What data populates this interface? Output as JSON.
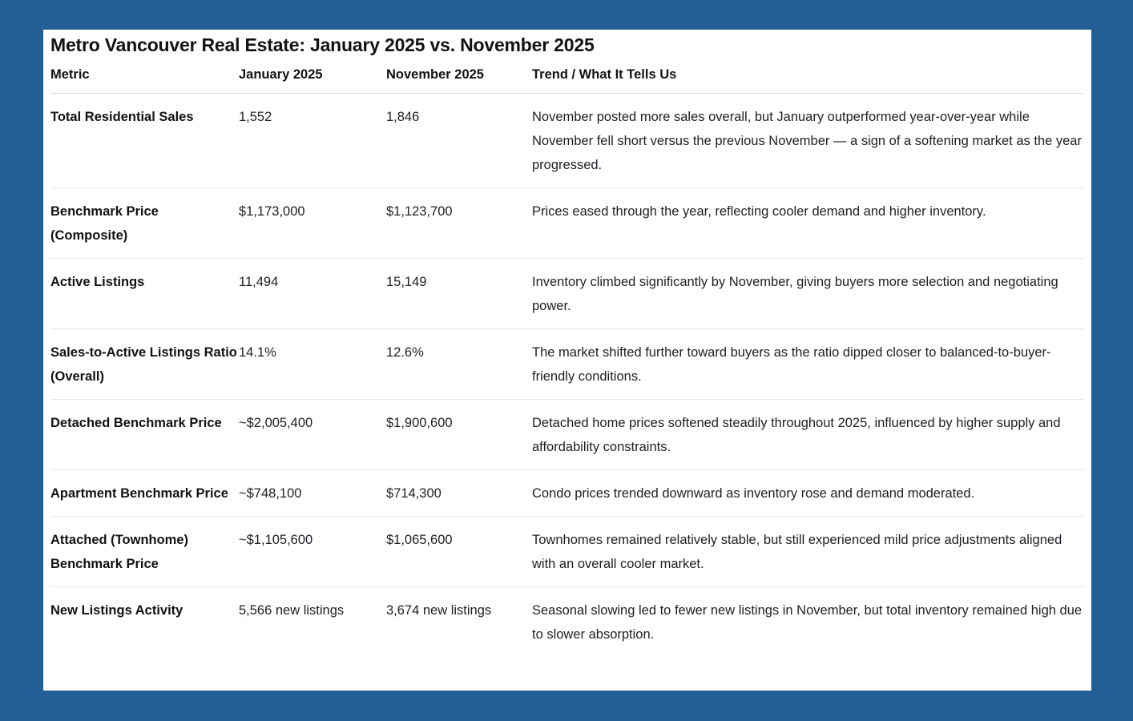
{
  "page": {
    "background_color": "#215e95",
    "card_background": "#ffffff",
    "divider_color": "#e7e7e9",
    "text_color": "#1d1f23"
  },
  "title": "Metro Vancouver Real Estate: January 2025 vs. November 2025",
  "table": {
    "columns": [
      "Metric",
      "January 2025",
      "November 2025",
      "Trend / What It Tells Us"
    ],
    "rows": [
      {
        "metric": "Total Residential Sales",
        "january": "1,552",
        "november": "1,846",
        "trend": "November posted more sales overall, but January outperformed year-over-year while November fell short versus the previous November — a sign of a softening market as the year progressed."
      },
      {
        "metric": "Benchmark Price (Composite)",
        "january": "$1,173,000",
        "november": "$1,123,700",
        "trend": "Prices eased through the year, reflecting cooler demand and higher inventory."
      },
      {
        "metric": "Active Listings",
        "january": "11,494",
        "november": "15,149",
        "trend": "Inventory climbed significantly by November, giving buyers more selection and negotiating power."
      },
      {
        "metric": "Sales-to-Active Listings Ratio (Overall)",
        "january": "14.1%",
        "november": "12.6%",
        "trend": "The market shifted further toward buyers as the ratio dipped closer to balanced-to-buyer-friendly conditions."
      },
      {
        "metric": "Detached Benchmark Price",
        "january": "~$2,005,400",
        "november": "$1,900,600",
        "trend": "Detached home prices softened steadily throughout 2025, influenced by higher supply and affordability constraints."
      },
      {
        "metric": "Apartment Benchmark Price",
        "january": "~$748,100",
        "november": "$714,300",
        "trend": "Condo prices trended downward as inventory rose and demand moderated."
      },
      {
        "metric": "Attached (Townhome) Benchmark Price",
        "january": "~$1,105,600",
        "november": "$1,065,600",
        "trend": "Townhomes remained relatively stable, but still experienced mild price adjustments aligned with an overall cooler market."
      },
      {
        "metric": "New Listings Activity",
        "january": "5,566 new listings",
        "november": "3,674 new listings",
        "trend": "Seasonal slowing led to fewer new listings in November, but total inventory remained high due to slower absorption."
      }
    ]
  }
}
